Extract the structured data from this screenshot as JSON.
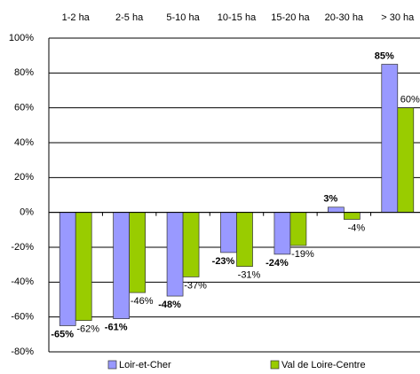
{
  "chart_data": {
    "type": "bar",
    "categories": [
      "1-2 ha",
      "2-5 ha",
      "5-10 ha",
      "10-15 ha",
      "15-20 ha",
      "20-30 ha",
      "> 30 ha"
    ],
    "series": [
      {
        "name": "Loir-et-Cher",
        "color": "#9999ff",
        "values": [
          -65,
          -61,
          -48,
          -23,
          -24,
          3,
          85
        ],
        "value_labels": [
          "-65%",
          "-61%",
          "-48%",
          "-23%",
          "-24%",
          "3%",
          "85%"
        ]
      },
      {
        "name": "Val de Loire-Centre",
        "color": "#99cc00",
        "values": [
          -62,
          -46,
          -37,
          -31,
          -19,
          -4,
          60
        ],
        "value_labels": [
          "-62%",
          "-46%",
          "-37%",
          "-31%",
          "-19%",
          "-4%",
          "60%"
        ]
      }
    ],
    "ylim": [
      -80,
      100
    ],
    "yticks": [
      {
        "value": -80,
        "label": "-80%"
      },
      {
        "value": -60,
        "label": "-60%"
      },
      {
        "value": -40,
        "label": "-40%"
      },
      {
        "value": -20,
        "label": "-20%"
      },
      {
        "value": 0,
        "label": "0%"
      },
      {
        "value": 20,
        "label": "20%"
      },
      {
        "value": 40,
        "label": "40%"
      },
      {
        "value": 60,
        "label": "60%"
      },
      {
        "value": 80,
        "label": "80%"
      },
      {
        "value": 100,
        "label": "100%"
      }
    ],
    "grid": true,
    "legend": "bottom"
  }
}
